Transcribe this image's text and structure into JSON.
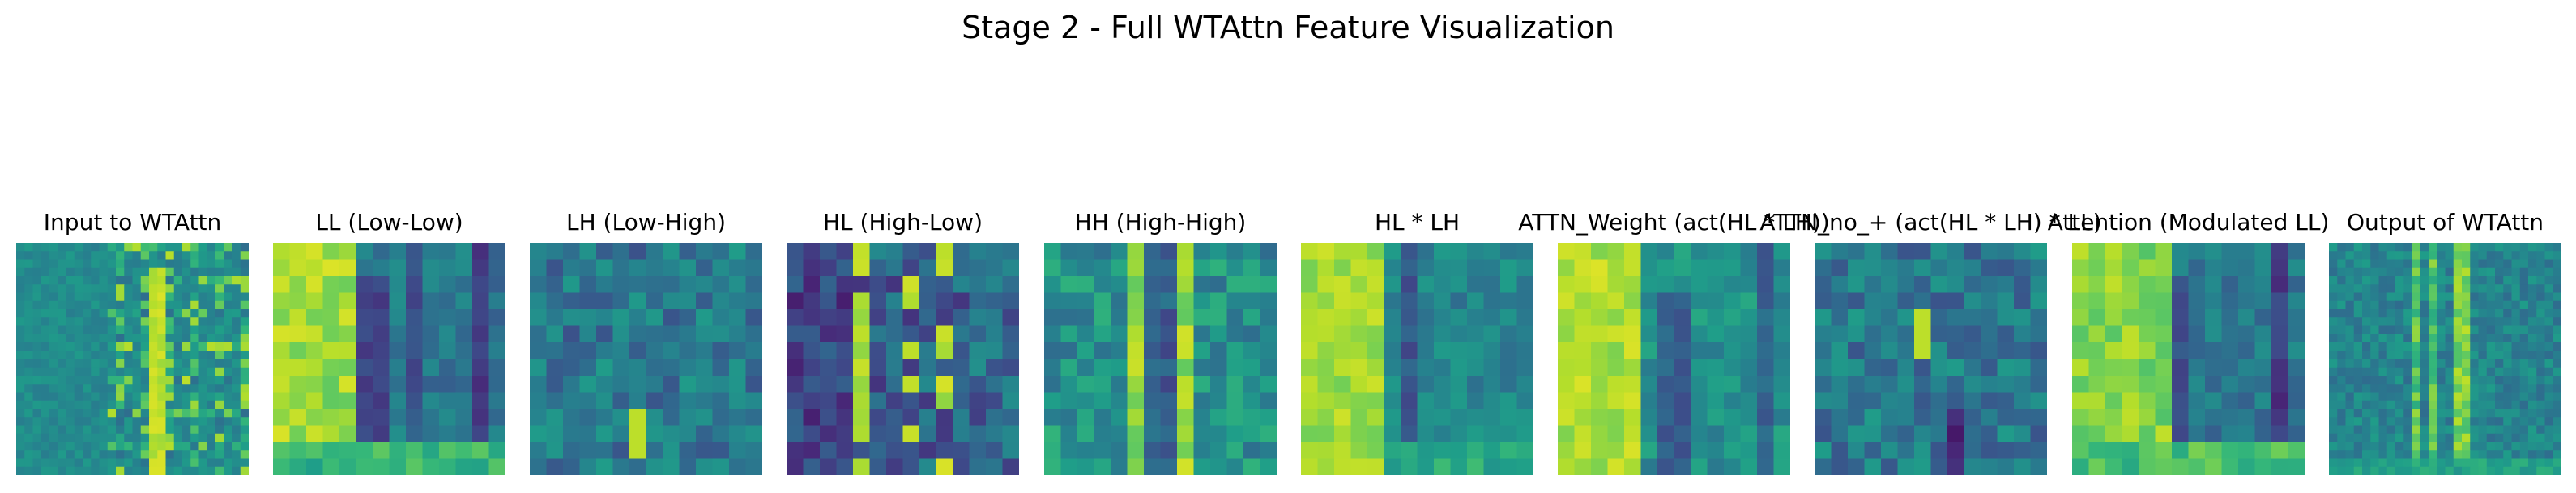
{
  "figure": {
    "title": "Stage 2 - Full WTAttn Feature Visualization"
  },
  "chart_data": [
    {
      "type": "heatmap",
      "title": "Input to WTAttn",
      "colormap": "viridis",
      "grid": false,
      "axes": "off",
      "rows": 28,
      "cols": 28,
      "pattern": "noise-text"
    },
    {
      "type": "heatmap",
      "title": "LL (Low-Low)",
      "colormap": "viridis",
      "grid": false,
      "axes": "off",
      "rows": 14,
      "cols": 14,
      "pattern": "ll"
    },
    {
      "type": "heatmap",
      "title": "LH (Low-High)",
      "colormap": "viridis",
      "grid": false,
      "axes": "off",
      "rows": 14,
      "cols": 14,
      "pattern": "lh"
    },
    {
      "type": "heatmap",
      "title": "HL (High-Low)",
      "colormap": "viridis",
      "grid": false,
      "axes": "off",
      "rows": 14,
      "cols": 14,
      "pattern": "hl"
    },
    {
      "type": "heatmap",
      "title": "HH (High-High)",
      "colormap": "viridis",
      "grid": false,
      "axes": "off",
      "rows": 14,
      "cols": 14,
      "pattern": "hh"
    },
    {
      "type": "heatmap",
      "title": "HL * LH",
      "colormap": "viridis",
      "grid": false,
      "axes": "off",
      "rows": 14,
      "cols": 14,
      "pattern": "hlxlh"
    },
    {
      "type": "heatmap",
      "title": "ATTN_Weight (act(HL * LH))",
      "colormap": "viridis",
      "grid": false,
      "axes": "off",
      "rows": 14,
      "cols": 14,
      "pattern": "attnw"
    },
    {
      "type": "heatmap",
      "title": "ATTN_no_+ (act(HL * LH) * LL)",
      "colormap": "viridis",
      "grid": false,
      "axes": "off",
      "rows": 14,
      "cols": 14,
      "pattern": "attnno"
    },
    {
      "type": "heatmap",
      "title": "Attention (Modulated LL)",
      "colormap": "viridis",
      "grid": false,
      "axes": "off",
      "rows": 14,
      "cols": 14,
      "pattern": "attn"
    },
    {
      "type": "heatmap",
      "title": "Output of WTAttn",
      "colormap": "viridis",
      "grid": false,
      "axes": "off",
      "rows": 28,
      "cols": 28,
      "pattern": "output"
    }
  ]
}
